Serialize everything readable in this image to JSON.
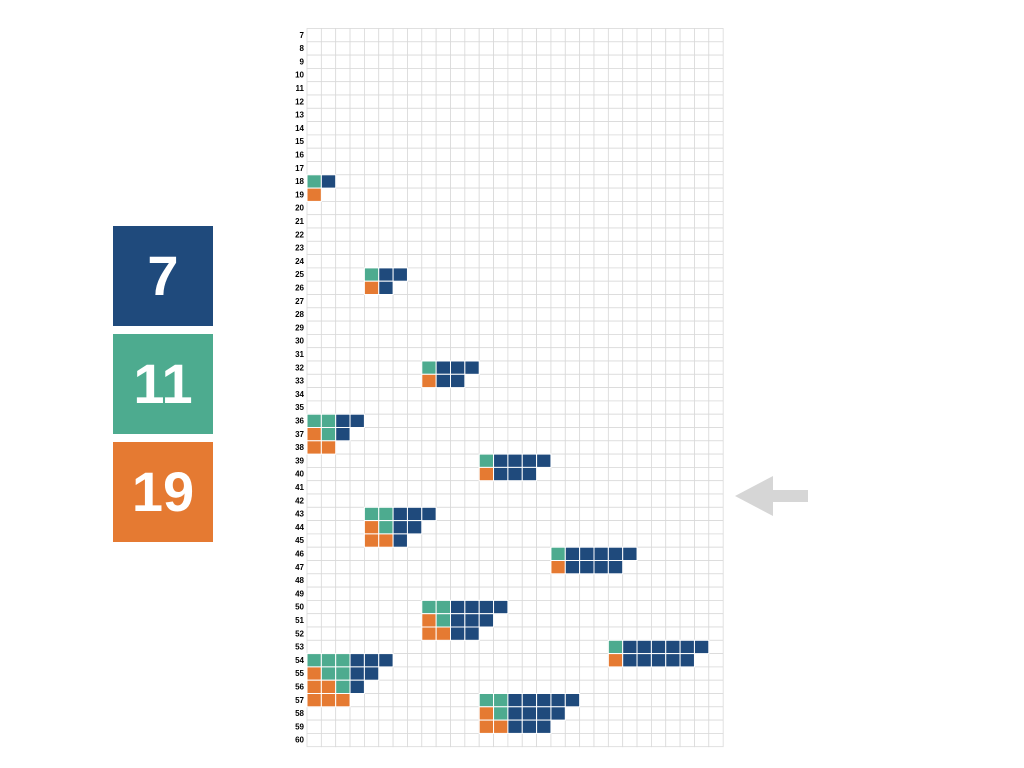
{
  "legend": [
    {
      "value": 7,
      "color": "#1f4a7c"
    },
    {
      "value": 11,
      "color": "#4dab8f"
    },
    {
      "value": 19,
      "color": "#e57a32"
    }
  ],
  "row_labels": [
    7,
    8,
    9,
    10,
    11,
    12,
    13,
    14,
    15,
    16,
    17,
    18,
    19,
    20,
    21,
    22,
    23,
    24,
    25,
    26,
    27,
    28,
    29,
    30,
    31,
    32,
    33,
    34,
    35,
    36,
    37,
    38,
    39,
    40,
    41,
    42,
    43,
    44,
    45,
    46,
    47,
    48,
    49,
    50,
    51,
    52,
    53,
    54,
    55,
    56,
    57,
    58,
    59,
    60
  ],
  "column_count": 29,
  "cell_order": [
    "orange",
    "teal",
    "blue"
  ],
  "blocks": [
    {
      "row": 18,
      "column": 0,
      "rows": [
        [
          0,
          1,
          1
        ],
        [
          1,
          0,
          0
        ]
      ]
    },
    {
      "row": 25,
      "column": 4,
      "rows": [
        [
          0,
          1,
          2
        ],
        [
          1,
          0,
          1
        ]
      ]
    },
    {
      "row": 32,
      "column": 8,
      "rows": [
        [
          0,
          1,
          3
        ],
        [
          1,
          0,
          2
        ]
      ]
    },
    {
      "row": 36,
      "column": 0,
      "rows": [
        [
          0,
          2,
          2
        ],
        [
          1,
          1,
          1
        ],
        [
          2,
          0,
          0
        ]
      ]
    },
    {
      "row": 39,
      "column": 12,
      "rows": [
        [
          0,
          1,
          4
        ],
        [
          1,
          0,
          3
        ]
      ]
    },
    {
      "row": 43,
      "column": 4,
      "rows": [
        [
          0,
          2,
          3
        ],
        [
          1,
          1,
          2
        ],
        [
          2,
          0,
          1
        ]
      ]
    },
    {
      "row": 46,
      "column": 17,
      "rows": [
        [
          0,
          1,
          5
        ],
        [
          1,
          0,
          4
        ]
      ]
    },
    {
      "row": 50,
      "column": 8,
      "rows": [
        [
          0,
          2,
          4
        ],
        [
          1,
          1,
          3
        ],
        [
          2,
          0,
          2
        ]
      ]
    },
    {
      "row": 53,
      "column": 21,
      "rows": [
        [
          0,
          1,
          6
        ],
        [
          1,
          0,
          5
        ]
      ]
    },
    {
      "row": 54,
      "column": 0,
      "rows": [
        [
          0,
          3,
          3
        ],
        [
          1,
          2,
          2
        ],
        [
          2,
          1,
          1
        ],
        [
          3,
          0,
          0
        ]
      ]
    },
    {
      "row": 57,
      "column": 12,
      "rows": [
        [
          0,
          2,
          5
        ],
        [
          1,
          1,
          4
        ],
        [
          2,
          0,
          3
        ]
      ]
    }
  ]
}
